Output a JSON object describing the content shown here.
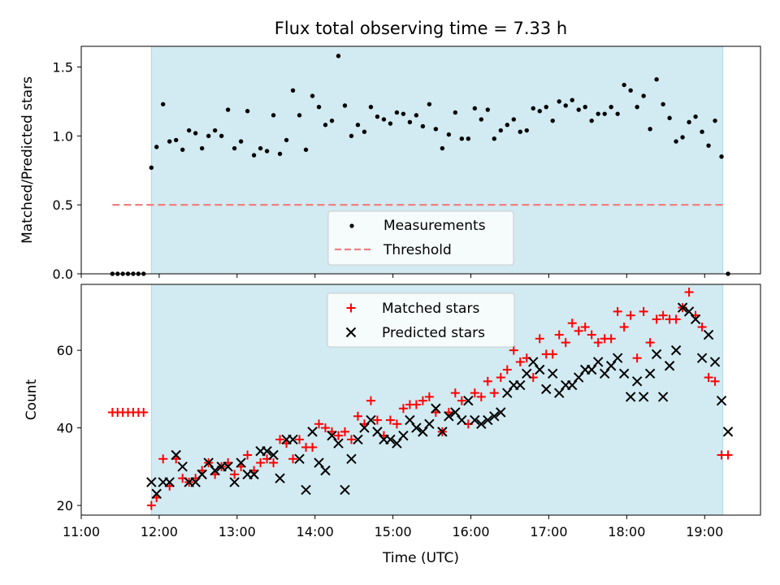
{
  "title": "Flux total observing time = 7.33 h",
  "colors": {
    "band": "#add8e6",
    "measurement": "#000000",
    "threshold": "#f08080",
    "matched": "#ff0000",
    "predicted": "#000000"
  },
  "chart_data": [
    {
      "type": "scatter",
      "ylabel": "Matched/Predicted stars",
      "ylim": [
        0,
        1.65
      ],
      "yticks": [
        "0.0",
        "0.5",
        "1.0",
        "1.5"
      ],
      "ytick_values": [
        0,
        0.5,
        1.0,
        1.5
      ],
      "xlim": [
        "11:00",
        "19:43"
      ],
      "observing_window": [
        "11:54",
        "19:14"
      ],
      "legend": {
        "placement": "lower center",
        "entries": [
          "Measurements",
          "Threshold"
        ]
      },
      "threshold": {
        "name": "Threshold",
        "value": 0.5,
        "x_range": [
          "11:24",
          "19:16"
        ]
      },
      "series": [
        {
          "name": "Measurements",
          "x": [
            "11:24",
            "11:28",
            "11:32",
            "11:36",
            "11:40",
            "11:44",
            "11:48",
            "11:54",
            "11:58",
            "12:03",
            "12:08",
            "12:13",
            "12:18",
            "12:23",
            "12:28",
            "12:33",
            "12:38",
            "12:43",
            "12:48",
            "12:53",
            "12:58",
            "13:03",
            "13:08",
            "13:13",
            "13:18",
            "13:23",
            "13:28",
            "13:33",
            "13:38",
            "13:43",
            "13:48",
            "13:53",
            "13:58",
            "14:03",
            "14:08",
            "14:13",
            "14:18",
            "14:23",
            "14:28",
            "14:33",
            "14:38",
            "14:43",
            "14:48",
            "14:53",
            "14:58",
            "15:03",
            "15:08",
            "15:13",
            "15:18",
            "15:23",
            "15:28",
            "15:33",
            "15:38",
            "15:43",
            "15:48",
            "15:53",
            "15:58",
            "16:03",
            "16:08",
            "16:13",
            "16:18",
            "16:23",
            "16:28",
            "16:33",
            "16:38",
            "16:43",
            "16:48",
            "16:53",
            "16:58",
            "17:03",
            "17:08",
            "17:13",
            "17:18",
            "17:23",
            "17:28",
            "17:33",
            "17:38",
            "17:43",
            "17:48",
            "17:53",
            "17:58",
            "18:03",
            "18:08",
            "18:13",
            "18:18",
            "18:23",
            "18:28",
            "18:33",
            "18:38",
            "18:43",
            "18:48",
            "18:53",
            "18:58",
            "19:03",
            "19:08",
            "19:13",
            "19:18"
          ],
          "y": [
            0,
            0,
            0,
            0,
            0,
            0,
            0,
            0.77,
            0.92,
            1.23,
            0.96,
            0.97,
            0.9,
            1.04,
            1.02,
            0.91,
            1.0,
            1.04,
            1.0,
            1.19,
            0.91,
            0.96,
            1.18,
            0.86,
            0.91,
            0.89,
            1.15,
            0.87,
            0.97,
            1.33,
            1.15,
            0.9,
            1.29,
            1.21,
            1.08,
            1.11,
            1.58,
            1.22,
            1.0,
            1.08,
            1.03,
            1.21,
            1.14,
            1.12,
            1.09,
            1.17,
            1.16,
            1.1,
            1.15,
            1.07,
            1.23,
            1.05,
            0.91,
            1.01,
            1.17,
            0.98,
            0.98,
            1.2,
            1.12,
            1.19,
            0.98,
            1.04,
            1.08,
            1.12,
            1.03,
            1.04,
            1.2,
            1.18,
            1.21,
            1.11,
            1.25,
            1.22,
            1.26,
            1.19,
            1.21,
            1.11,
            1.16,
            1.16,
            1.21,
            1.16,
            1.37,
            1.33,
            1.21,
            1.29,
            1.05,
            1.41,
            1.23,
            1.13,
            0.96,
            0.99,
            1.1,
            1.14,
            1.03,
            0.93,
            1.11,
            0.85,
            0
          ]
        }
      ]
    },
    {
      "type": "scatter",
      "xlabel": "Time (UTC)",
      "ylabel": "Count",
      "ylim": [
        17.5,
        77
      ],
      "yticks": [
        "20",
        "40",
        "60"
      ],
      "ytick_values": [
        20,
        40,
        60
      ],
      "xlim": [
        "11:00",
        "19:43"
      ],
      "xticks": [
        "11:00",
        "12:00",
        "13:00",
        "14:00",
        "15:00",
        "16:00",
        "17:00",
        "18:00",
        "19:00"
      ],
      "observing_window": [
        "11:54",
        "19:14"
      ],
      "legend": {
        "placement": "upper center",
        "entries": [
          "Matched stars",
          "Predicted stars"
        ]
      },
      "series": [
        {
          "name": "Matched stars",
          "x": [
            "11:24",
            "11:28",
            "11:32",
            "11:36",
            "11:40",
            "11:44",
            "11:48",
            "11:54",
            "11:58",
            "12:03",
            "12:08",
            "12:13",
            "12:18",
            "12:23",
            "12:28",
            "12:33",
            "12:38",
            "12:43",
            "12:48",
            "12:53",
            "12:58",
            "13:03",
            "13:08",
            "13:13",
            "13:18",
            "13:23",
            "13:28",
            "13:33",
            "13:38",
            "13:43",
            "13:48",
            "13:53",
            "13:58",
            "14:03",
            "14:08",
            "14:13",
            "14:18",
            "14:23",
            "14:28",
            "14:33",
            "14:38",
            "14:43",
            "14:48",
            "14:53",
            "14:58",
            "15:03",
            "15:08",
            "15:13",
            "15:18",
            "15:23",
            "15:28",
            "15:33",
            "15:38",
            "15:43",
            "15:48",
            "15:53",
            "15:58",
            "16:03",
            "16:08",
            "16:13",
            "16:18",
            "16:23",
            "16:28",
            "16:33",
            "16:38",
            "16:43",
            "16:48",
            "16:53",
            "16:58",
            "17:03",
            "17:08",
            "17:13",
            "17:18",
            "17:23",
            "17:28",
            "17:33",
            "17:38",
            "17:43",
            "17:48",
            "17:53",
            "17:58",
            "18:03",
            "18:08",
            "18:13",
            "18:18",
            "18:23",
            "18:28",
            "18:33",
            "18:38",
            "18:43",
            "18:48",
            "18:53",
            "18:58",
            "19:03",
            "19:08",
            "19:13",
            "19:18"
          ],
          "y": [
            44,
            44,
            44,
            44,
            44,
            44,
            44,
            20,
            22,
            32,
            25,
            32,
            27,
            26,
            27,
            29,
            31,
            28,
            30,
            31,
            28,
            30,
            33,
            29,
            31,
            32,
            31,
            37,
            36,
            32,
            37,
            35,
            35,
            41,
            40,
            39,
            38,
            39,
            37,
            43,
            41,
            47,
            42,
            38,
            42,
            41,
            45,
            46,
            46,
            47,
            48,
            44,
            39,
            44,
            49,
            47,
            41,
            49,
            48,
            52,
            49,
            53,
            55,
            60,
            57,
            58,
            53,
            63,
            59,
            59,
            64,
            62,
            67,
            65,
            66,
            64,
            62,
            63,
            63,
            70,
            66,
            69,
            58,
            70,
            62,
            68,
            69,
            68,
            68,
            71,
            75,
            69,
            66,
            53,
            52,
            33,
            33
          ]
        },
        {
          "name": "Predicted stars",
          "x": [
            "11:54",
            "11:58",
            "12:03",
            "12:08",
            "12:13",
            "12:18",
            "12:23",
            "12:28",
            "12:33",
            "12:38",
            "12:43",
            "12:48",
            "12:53",
            "12:58",
            "13:03",
            "13:08",
            "13:13",
            "13:18",
            "13:23",
            "13:28",
            "13:33",
            "13:38",
            "13:43",
            "13:48",
            "13:53",
            "13:58",
            "14:03",
            "14:08",
            "14:13",
            "14:18",
            "14:23",
            "14:28",
            "14:33",
            "14:38",
            "14:43",
            "14:48",
            "14:53",
            "14:58",
            "15:03",
            "15:08",
            "15:13",
            "15:18",
            "15:23",
            "15:28",
            "15:33",
            "15:38",
            "15:43",
            "15:48",
            "15:53",
            "15:58",
            "16:03",
            "16:08",
            "16:13",
            "16:18",
            "16:23",
            "16:28",
            "16:33",
            "16:38",
            "16:43",
            "16:48",
            "16:53",
            "16:58",
            "17:03",
            "17:08",
            "17:13",
            "17:18",
            "17:23",
            "17:28",
            "17:33",
            "17:38",
            "17:43",
            "17:48",
            "17:53",
            "17:58",
            "18:03",
            "18:08",
            "18:13",
            "18:18",
            "18:23",
            "18:28",
            "18:33",
            "18:38",
            "18:43",
            "18:48",
            "18:53",
            "18:58",
            "19:03",
            "19:08",
            "19:13",
            "19:18"
          ],
          "y": [
            26,
            23,
            26,
            26,
            33,
            30,
            26,
            26,
            28,
            31,
            29,
            30,
            30,
            26,
            31,
            28,
            28,
            34,
            34,
            33,
            27,
            37,
            37,
            32,
            24,
            39,
            31,
            29,
            38,
            36,
            24,
            32,
            37,
            40,
            42,
            39,
            37,
            37,
            36,
            38,
            42,
            40,
            39,
            41,
            45,
            39,
            43,
            44,
            42,
            47,
            42,
            41,
            42,
            43,
            44,
            49,
            51,
            51,
            54,
            57,
            55,
            50,
            54,
            49,
            51,
            51,
            53,
            55,
            55,
            57,
            54,
            56,
            58,
            54,
            48,
            52,
            48,
            54,
            59,
            48,
            56,
            60,
            71,
            70,
            68,
            58,
            64,
            57,
            47,
            39
          ]
        }
      ]
    }
  ]
}
